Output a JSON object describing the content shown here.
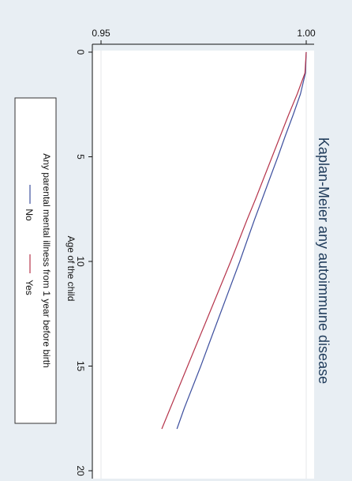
{
  "chart_data": {
    "type": "line",
    "orientation": "rotated-90-clockwise",
    "title": "Kaplan-Meier any autoimmune disease",
    "xlabel": "Age of the child",
    "ylabel": "",
    "xlim": [
      0,
      20
    ],
    "ylim": [
      0.95,
      1.0
    ],
    "x_ticks": [
      0,
      5,
      10,
      15,
      20
    ],
    "x_tick_labels": [
      "0",
      "5",
      "10",
      "15",
      "20"
    ],
    "y_ticks": [
      0.95,
      1.0
    ],
    "y_tick_labels": [
      "0.95",
      "1.00"
    ],
    "grid": true,
    "legend": {
      "title": "Any parental mental illness from 1 year before birth",
      "position": "bottom",
      "entries": [
        "No",
        "Yes"
      ]
    },
    "series": [
      {
        "name": "No",
        "color": "#3d4f9e",
        "x": [
          0,
          1,
          2,
          3,
          4,
          5,
          6,
          7,
          8,
          9,
          10,
          11,
          12,
          13,
          14,
          15,
          16,
          17,
          18
        ],
        "y": [
          1.0,
          0.9998,
          0.9986,
          0.9968,
          0.9949,
          0.9931,
          0.9912,
          0.9893,
          0.9874,
          0.9856,
          0.9838,
          0.9819,
          0.98,
          0.9781,
          0.9762,
          0.9743,
          0.9723,
          0.9703,
          0.9685
        ]
      },
      {
        "name": "Yes",
        "color": "#b5344b",
        "x": [
          0,
          1,
          2,
          3,
          4,
          5,
          6,
          7,
          8,
          9,
          10,
          11,
          12,
          13,
          14,
          15,
          16,
          17,
          18
        ],
        "y": [
          1.0,
          0.9997,
          0.9978,
          0.9957,
          0.9937,
          0.9917,
          0.9897,
          0.9877,
          0.9856,
          0.9836,
          0.9816,
          0.9795,
          0.9774,
          0.9753,
          0.9732,
          0.9711,
          0.969,
          0.9669,
          0.9648
        ]
      }
    ]
  }
}
